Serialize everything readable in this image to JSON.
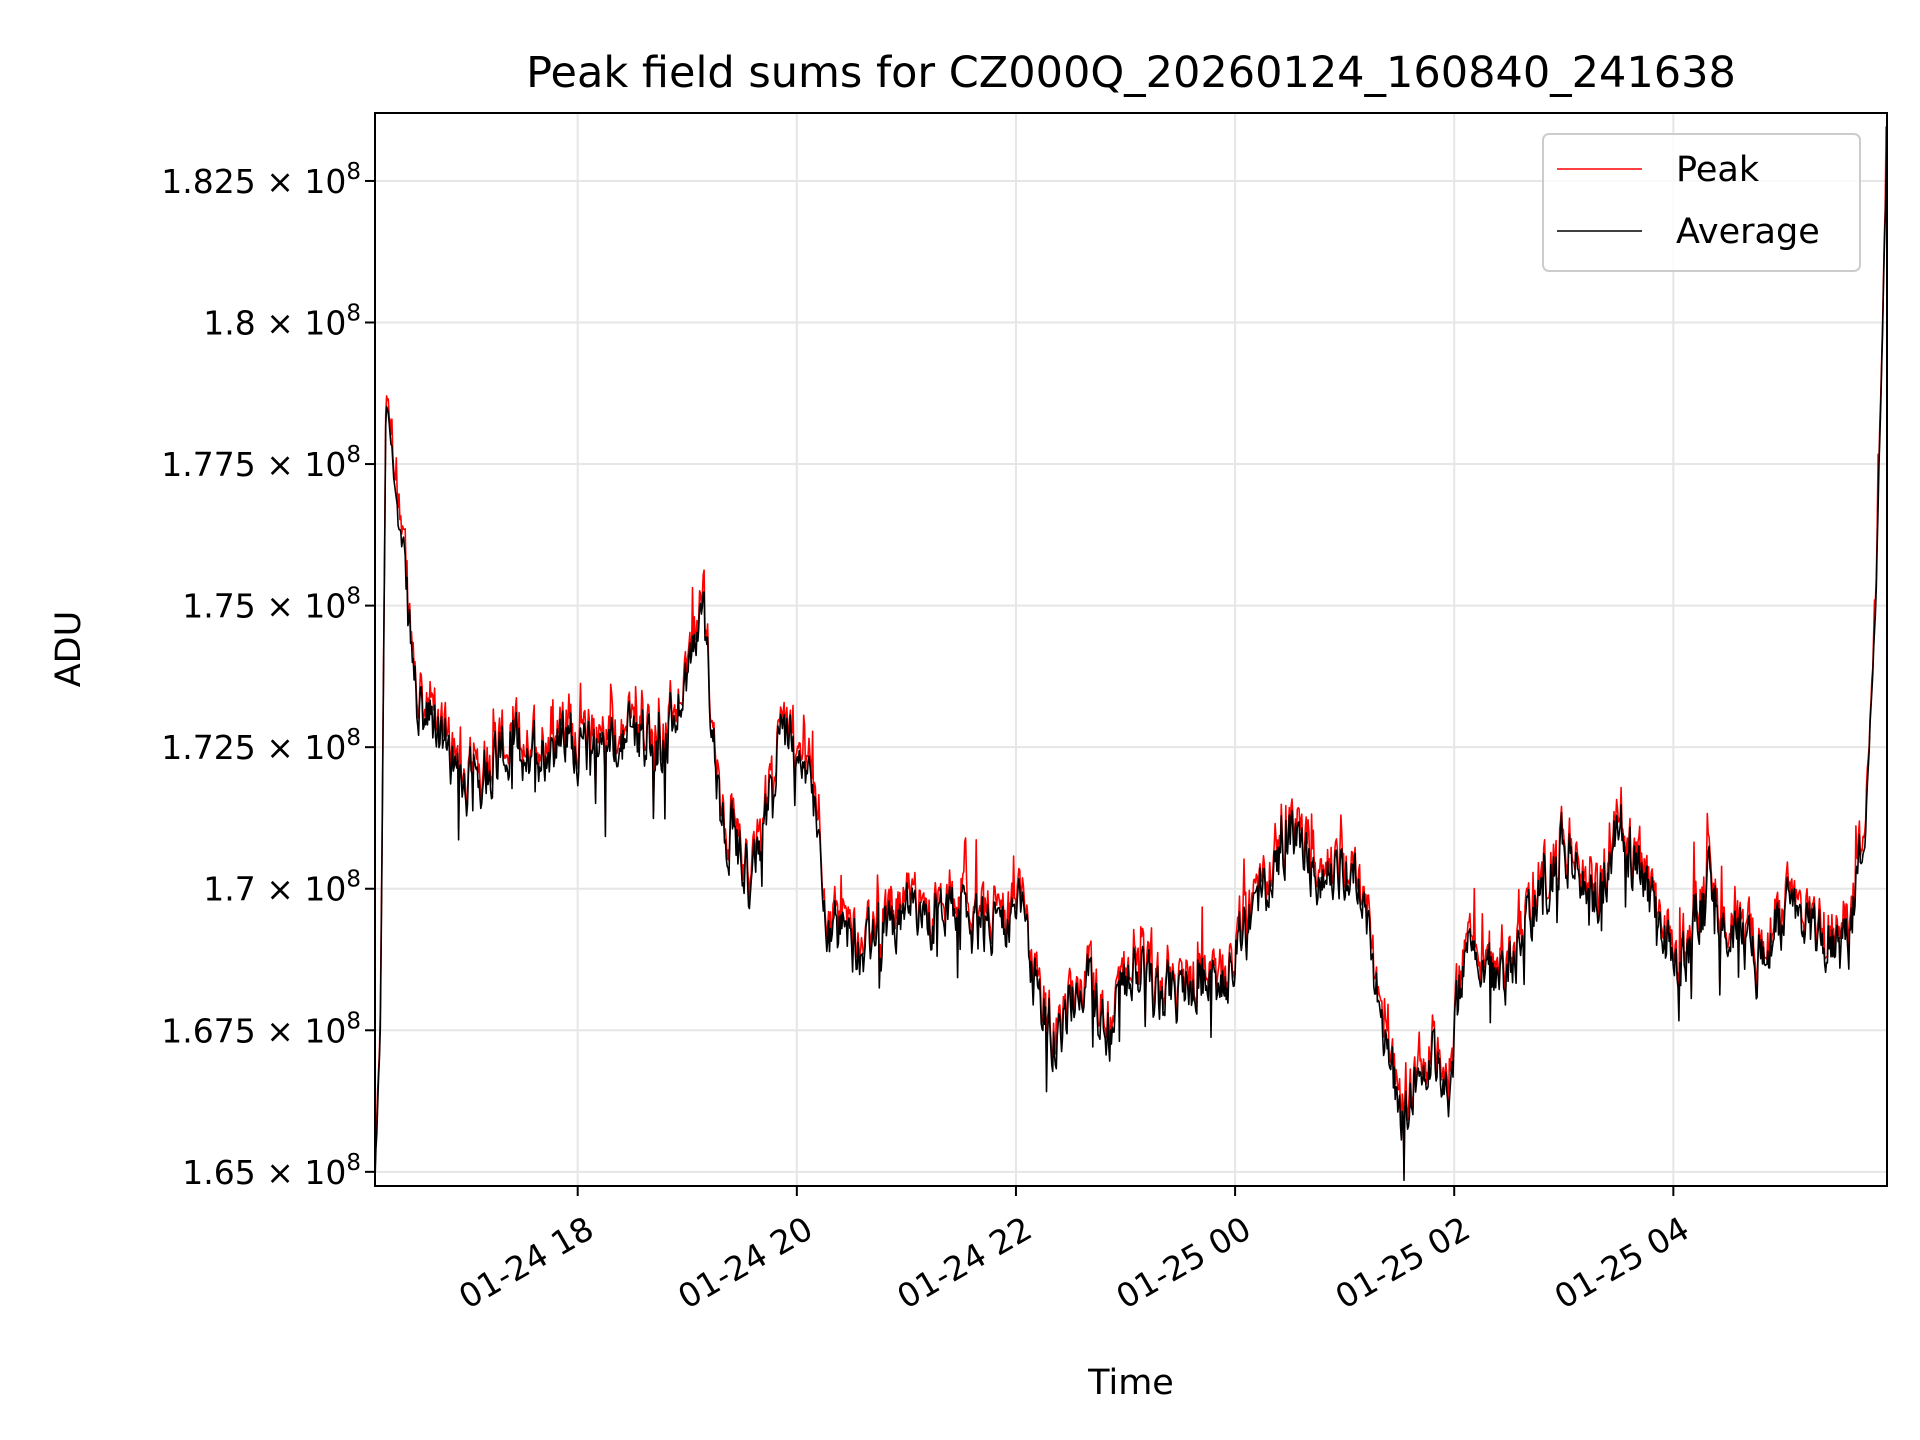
{
  "chart_data": {
    "type": "line",
    "title": "Peak field sums for CZ000Q_20260124_160840_241638",
    "xlabel": "Time",
    "ylabel": "ADU",
    "x_range_hours": [
      16.15,
      5.95
    ],
    "x_domain_hours_since_0124_00": [
      16.15,
      29.95
    ],
    "ylim": [
      164750000,
      183700000
    ],
    "grid": true,
    "legend_position": "top-right",
    "x_ticks": [
      {
        "hour": 18,
        "label": "01-24 18"
      },
      {
        "hour": 20,
        "label": "01-24 20"
      },
      {
        "hour": 22,
        "label": "01-24 22"
      },
      {
        "hour": 24,
        "label": "01-25 00"
      },
      {
        "hour": 26,
        "label": "01-25 02"
      },
      {
        "hour": 28,
        "label": "01-25 04"
      }
    ],
    "y_ticks": [
      {
        "value": 165000000,
        "mantissa": "1.65"
      },
      {
        "value": 167500000,
        "mantissa": "1.675"
      },
      {
        "value": 170000000,
        "mantissa": "1.7"
      },
      {
        "value": 172500000,
        "mantissa": "1.725"
      },
      {
        "value": 175000000,
        "mantissa": "1.75"
      },
      {
        "value": 177500000,
        "mantissa": "1.775"
      },
      {
        "value": 180000000,
        "mantissa": "1.8"
      },
      {
        "value": 182500000,
        "mantissa": "1.825"
      }
    ],
    "y_tick_suffix": "× 10",
    "y_tick_exponent": "8",
    "series": [
      {
        "name": "Peak",
        "color": "#ff0000"
      },
      {
        "name": "Average",
        "color": "#000000"
      }
    ],
    "average_anchor_points_hours_adu": [
      [
        16.15,
        164800000
      ],
      [
        16.2,
        167500000
      ],
      [
        16.25,
        178600000
      ],
      [
        16.3,
        177800000
      ],
      [
        16.45,
        174800000
      ],
      [
        16.55,
        173000000
      ],
      [
        16.7,
        172800000
      ],
      [
        17.0,
        171900000
      ],
      [
        17.3,
        172500000
      ],
      [
        17.6,
        172400000
      ],
      [
        17.9,
        172700000
      ],
      [
        18.2,
        172300000
      ],
      [
        18.5,
        172800000
      ],
      [
        18.8,
        172600000
      ],
      [
        19.15,
        174800000
      ],
      [
        19.3,
        171400000
      ],
      [
        19.6,
        170100000
      ],
      [
        19.85,
        172600000
      ],
      [
        20.05,
        172400000
      ],
      [
        20.2,
        171000000
      ],
      [
        20.3,
        169200000
      ],
      [
        20.6,
        168900000
      ],
      [
        20.9,
        169400000
      ],
      [
        21.3,
        169500000
      ],
      [
        21.7,
        169300000
      ],
      [
        22.0,
        169700000
      ],
      [
        22.2,
        168200000
      ],
      [
        22.4,
        167300000
      ],
      [
        22.6,
        168500000
      ],
      [
        22.85,
        167500000
      ],
      [
        23.1,
        168700000
      ],
      [
        23.3,
        168000000
      ],
      [
        23.6,
        168300000
      ],
      [
        23.9,
        168200000
      ],
      [
        24.2,
        169800000
      ],
      [
        24.5,
        171000000
      ],
      [
        24.8,
        170200000
      ],
      [
        25.1,
        170300000
      ],
      [
        25.3,
        168200000
      ],
      [
        25.5,
        166000000
      ],
      [
        25.75,
        167200000
      ],
      [
        25.95,
        166300000
      ],
      [
        26.1,
        169200000
      ],
      [
        26.4,
        168300000
      ],
      [
        26.7,
        169500000
      ],
      [
        27.0,
        170800000
      ],
      [
        27.3,
        169800000
      ],
      [
        27.5,
        171200000
      ],
      [
        27.8,
        169700000
      ],
      [
        28.05,
        168500000
      ],
      [
        28.3,
        170100000
      ],
      [
        28.55,
        169200000
      ],
      [
        28.75,
        168600000
      ],
      [
        29.0,
        169500000
      ],
      [
        29.3,
        169200000
      ],
      [
        29.6,
        169100000
      ],
      [
        29.75,
        171000000
      ],
      [
        29.85,
        175200000
      ],
      [
        29.95,
        183200000
      ]
    ]
  }
}
